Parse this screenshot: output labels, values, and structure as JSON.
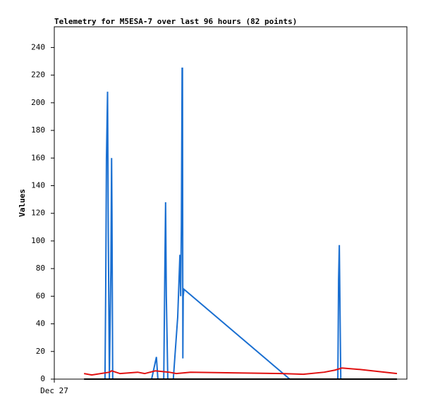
{
  "chart_data": {
    "type": "line",
    "title": "Telemetry for M5ESA-7 over last 96 hours (82 points)",
    "y_label": "Values",
    "xlim": [
      0,
      96
    ],
    "xticks": [
      {
        "value": 0,
        "label": "Dec 27"
      }
    ],
    "ylim": [
      0,
      255
    ],
    "yticks": [
      0,
      20,
      40,
      60,
      80,
      100,
      120,
      140,
      160,
      180,
      200,
      220,
      240
    ],
    "grid": false,
    "series": [
      {
        "color": "#1a6fd1",
        "x": [
          13.8,
          14.0,
          14.2,
          14.5,
          14.7,
          15.0,
          15.4,
          15.6,
          15.7,
          15.9,
          26.5,
          27.8,
          28.2,
          29.8,
          30.1,
          30.3,
          30.5,
          30.9,
          32.4,
          33.6,
          34.2,
          34.4,
          34.6,
          34.8,
          34.9,
          35.0,
          35.1,
          35.3,
          64.1,
          77.2,
          77.4,
          77.6,
          77.8,
          78.0
        ],
        "values": [
          0,
          65,
          160,
          208,
          105,
          0,
          80,
          160,
          120,
          0,
          0,
          16,
          0,
          0,
          80,
          128,
          60,
          0,
          0,
          45,
          90,
          60,
          112,
          225,
          225,
          15,
          60,
          65,
          0,
          0,
          72,
          97,
          48,
          0
        ]
      },
      {
        "color": "#e01010",
        "x": [
          8.1,
          10.2,
          15.0,
          15.6,
          17.9,
          22.7,
          24.6,
          27.5,
          31.3,
          33.2,
          37.1,
          48.6,
          62.0,
          67.8,
          73.5,
          76.4,
          78.3,
          83.1,
          93.3
        ],
        "values": [
          4,
          3,
          5,
          6,
          4,
          5,
          4,
          6,
          5,
          4,
          5,
          4.5,
          4,
          3.5,
          5,
          6.5,
          8,
          7,
          4
        ]
      },
      {
        "color": "#000000",
        "x": [
          8.1,
          93.3
        ],
        "values": [
          0,
          0
        ]
      }
    ]
  }
}
